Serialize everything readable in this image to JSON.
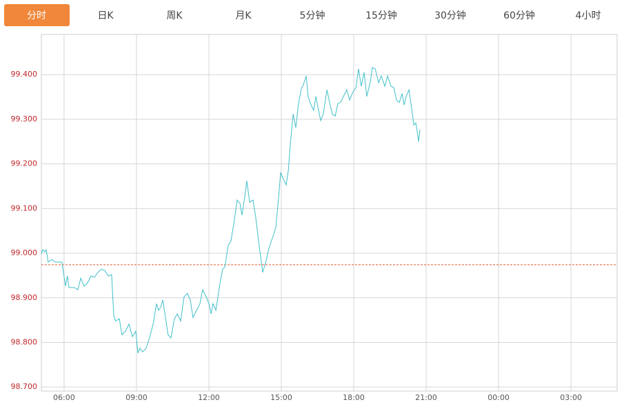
{
  "tabs": [
    "分时",
    "日K",
    "周K",
    "月K",
    "5分钟",
    "15分钟",
    "30分钟",
    "60分钟",
    "4小时"
  ],
  "active_tab": 0,
  "chart_data": {
    "type": "line",
    "color": "#3fbfc9",
    "x": [
      5.06,
      5.11,
      5.2,
      5.26,
      5.34,
      5.49,
      5.63,
      5.91,
      6.06,
      6.14,
      6.2,
      6.43,
      6.57,
      6.69,
      6.83,
      6.97,
      7.11,
      7.26,
      7.4,
      7.54,
      7.69,
      7.83,
      7.97,
      8.06,
      8.14,
      8.29,
      8.4,
      8.54,
      8.69,
      8.83,
      8.97,
      9.06,
      9.14,
      9.26,
      9.4,
      9.54,
      9.69,
      9.83,
      9.91,
      10.0,
      10.09,
      10.2,
      10.31,
      10.43,
      10.57,
      10.69,
      10.83,
      10.97,
      11.11,
      11.23,
      11.34,
      11.49,
      11.63,
      11.74,
      11.89,
      12.0,
      12.09,
      12.17,
      12.29,
      12.46,
      12.57,
      12.66,
      12.8,
      12.91,
      13.06,
      13.17,
      13.29,
      13.37,
      13.49,
      13.57,
      13.69,
      13.83,
      13.94,
      14.06,
      14.23,
      14.37,
      14.49,
      14.63,
      14.77,
      14.89,
      14.97,
      15.09,
      15.2,
      15.29,
      15.37,
      15.49,
      15.6,
      15.71,
      15.83,
      15.91,
      16.03,
      16.11,
      16.23,
      16.34,
      16.43,
      16.51,
      16.63,
      16.74,
      16.89,
      17.0,
      17.11,
      17.23,
      17.34,
      17.46,
      17.57,
      17.71,
      17.83,
      17.94,
      18.09,
      18.2,
      18.31,
      18.43,
      18.54,
      18.69,
      18.77,
      18.89,
      19.03,
      19.14,
      19.29,
      19.4,
      19.54,
      19.66,
      19.77,
      19.89,
      20.0,
      20.09,
      20.17,
      20.29,
      20.4,
      20.49,
      20.57,
      20.63,
      20.69,
      20.74
    ],
    "values": [
      98.998,
      99.008,
      99.003,
      99.008,
      98.98,
      98.986,
      98.98,
      98.98,
      98.926,
      98.949,
      98.923,
      98.923,
      98.918,
      98.944,
      98.926,
      98.933,
      98.949,
      98.946,
      98.957,
      98.964,
      98.961,
      98.949,
      98.952,
      98.859,
      98.848,
      98.853,
      98.817,
      98.825,
      98.841,
      98.813,
      98.825,
      98.776,
      98.787,
      98.779,
      98.787,
      98.81,
      98.841,
      98.887,
      98.872,
      98.879,
      98.895,
      98.856,
      98.817,
      98.81,
      98.853,
      98.864,
      98.848,
      98.902,
      98.91,
      98.895,
      98.856,
      98.872,
      98.887,
      98.918,
      98.902,
      98.887,
      98.864,
      98.887,
      98.872,
      98.933,
      98.964,
      98.969,
      99.018,
      99.026,
      99.076,
      99.119,
      99.111,
      99.085,
      99.127,
      99.162,
      99.114,
      99.119,
      99.08,
      99.026,
      98.957,
      98.983,
      99.011,
      99.034,
      99.057,
      99.127,
      99.181,
      99.165,
      99.153,
      99.185,
      99.243,
      99.312,
      99.281,
      99.335,
      99.369,
      99.377,
      99.397,
      99.351,
      99.332,
      99.32,
      99.351,
      99.328,
      99.297,
      99.312,
      99.366,
      99.338,
      99.312,
      99.307,
      99.335,
      99.338,
      99.351,
      99.366,
      99.343,
      99.358,
      99.371,
      99.413,
      99.374,
      99.405,
      99.351,
      99.385,
      99.416,
      99.413,
      99.382,
      99.397,
      99.374,
      99.397,
      99.374,
      99.371,
      99.343,
      99.338,
      99.358,
      99.332,
      99.351,
      99.366,
      99.323,
      99.287,
      99.292,
      99.273,
      99.25,
      99.277
    ],
    "xlim": [
      5.06,
      28.91
    ],
    "xticks": [
      {
        "value": 6,
        "label": "06:00"
      },
      {
        "value": 9,
        "label": "09:00"
      },
      {
        "value": 12,
        "label": "12:00"
      },
      {
        "value": 15,
        "label": "15:00"
      },
      {
        "value": 18,
        "label": "18:00"
      },
      {
        "value": 21,
        "label": "21:00"
      },
      {
        "value": 24,
        "label": "00:00"
      },
      {
        "value": 27,
        "label": "03:00"
      }
    ],
    "ylim": [
      98.691,
      99.49
    ],
    "yticks": [
      {
        "value": 98.7,
        "label": "98.700"
      },
      {
        "value": 98.8,
        "label": "98.800"
      },
      {
        "value": 98.9,
        "label": "98.900"
      },
      {
        "value": 99.0,
        "label": "99.000"
      },
      {
        "value": 99.1,
        "label": "99.100"
      },
      {
        "value": 99.2,
        "label": "99.200"
      },
      {
        "value": 99.3,
        "label": "99.300"
      },
      {
        "value": 99.4,
        "label": "99.400"
      }
    ],
    "reference_line": 98.974,
    "reference_color": "#e2572b",
    "grid": true
  }
}
